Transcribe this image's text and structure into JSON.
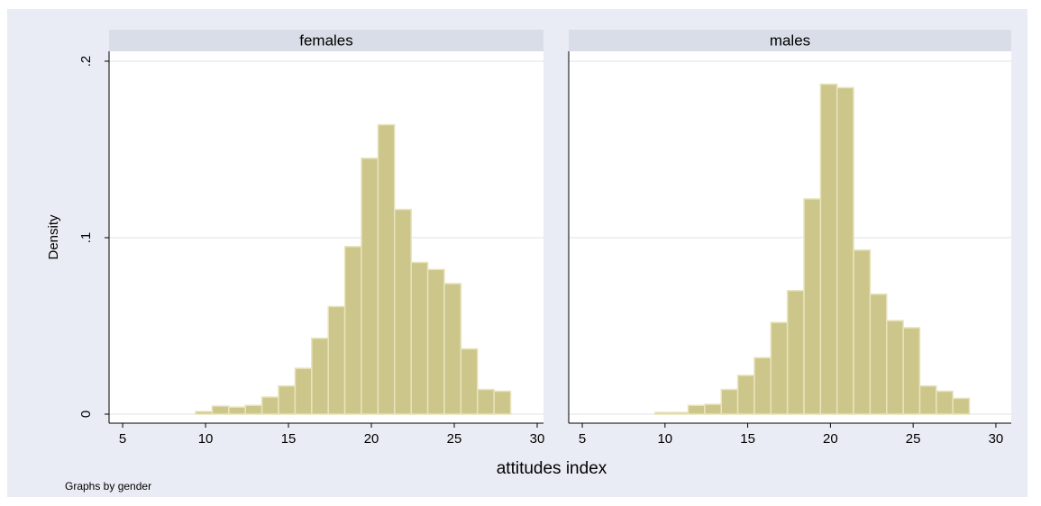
{
  "chart_data": [
    {
      "type": "histogram",
      "title": "females",
      "y_label": "Density",
      "bins": [
        9.4,
        10.4,
        11.4,
        12.4,
        13.4,
        14.4,
        15.4,
        16.4,
        17.4,
        18.4,
        19.4,
        20.4,
        21.4,
        22.4,
        23.4,
        24.4,
        25.4,
        26.4,
        27.4,
        28.4
      ],
      "values": [
        0.0015,
        0.0046,
        0.004,
        0.005,
        0.0097,
        0.016,
        0.026,
        0.043,
        0.061,
        0.095,
        0.145,
        0.164,
        0.116,
        0.086,
        0.082,
        0.074,
        0.037,
        0.014,
        0.013
      ],
      "color": "#cdc68a",
      "xlim": [
        4.18,
        30.38
      ],
      "xticks": [
        5,
        10,
        15,
        20,
        25,
        30
      ],
      "ylim": [
        -0.0051,
        0.2056
      ],
      "yticks": [
        0,
        {
          "value": 0.1,
          "label": ".1"
        },
        {
          "value": 0.2,
          "label": ".2"
        }
      ],
      "grid": true
    },
    {
      "type": "histogram",
      "title": "males",
      "bins": [
        9.4,
        10.4,
        11.4,
        12.4,
        13.4,
        14.4,
        15.4,
        16.4,
        17.4,
        18.4,
        19.4,
        20.4,
        21.4,
        22.4,
        23.4,
        24.4,
        25.4,
        26.4,
        27.4,
        28.4
      ],
      "values": [
        0.001,
        0.001,
        0.005,
        0.0056,
        0.014,
        0.022,
        0.032,
        0.052,
        0.07,
        0.122,
        0.187,
        0.185,
        0.093,
        0.068,
        0.053,
        0.049,
        0.016,
        0.013,
        0.009
      ],
      "color": "#cdc68a",
      "xlim": [
        4.18,
        30.93
      ],
      "xticks": [
        5,
        10,
        15,
        20,
        25,
        30
      ],
      "grid": true
    }
  ],
  "x_label": "attitudes index",
  "note": "Graphs by gender"
}
